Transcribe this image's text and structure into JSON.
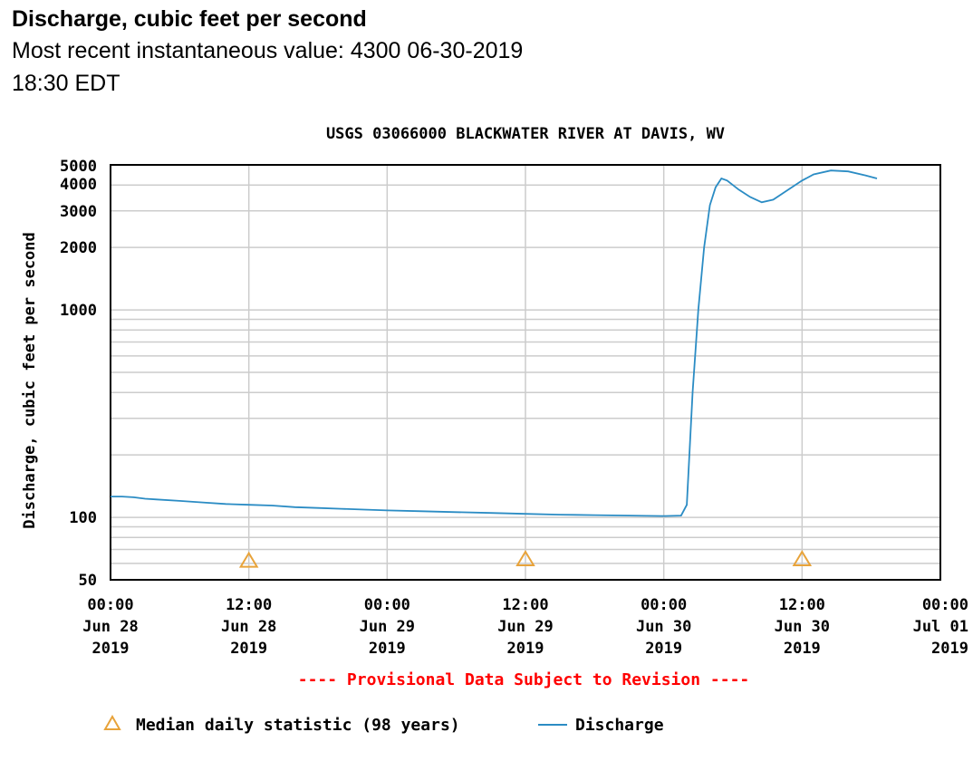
{
  "header": {
    "title": "Discharge, cubic feet per second",
    "recent_label": "Most recent instantaneous value:",
    "recent_value": "4300",
    "recent_date": "06-30-2019",
    "recent_time": "18:30 EDT"
  },
  "chart_data": {
    "type": "line",
    "title": "USGS 03066000 BLACKWATER RIVER AT DAVIS, WV",
    "ylabel": "Discharge, cubic feet per second",
    "xlabel": "",
    "y_scale": "log",
    "ylim": [
      50,
      5000
    ],
    "xlim": [
      "2019-06-28 00:00",
      "2019-07-01 00:00"
    ],
    "y_ticks": [
      {
        "value": 50,
        "label": "50"
      },
      {
        "value": 100,
        "label": "100"
      },
      {
        "value": 1000,
        "label": "1000"
      },
      {
        "value": 2000,
        "label": "2000"
      },
      {
        "value": 3000,
        "label": "3000"
      },
      {
        "value": 4000,
        "label": "4000"
      },
      {
        "value": 5000,
        "label": "5000"
      }
    ],
    "x_ticks": [
      {
        "x": "2019-06-28 00:00",
        "lines": [
          "00:00",
          "Jun 28",
          "2019"
        ]
      },
      {
        "x": "2019-06-28 12:00",
        "lines": [
          "12:00",
          "Jun 28",
          "2019"
        ]
      },
      {
        "x": "2019-06-29 00:00",
        "lines": [
          "00:00",
          "Jun 29",
          "2019"
        ]
      },
      {
        "x": "2019-06-29 12:00",
        "lines": [
          "12:00",
          "Jun 29",
          "2019"
        ]
      },
      {
        "x": "2019-06-30 00:00",
        "lines": [
          "00:00",
          "Jun 30",
          "2019"
        ]
      },
      {
        "x": "2019-06-30 12:00",
        "lines": [
          "12:00",
          "Jun 30",
          "2019"
        ]
      },
      {
        "x": "2019-07-01 00:00",
        "lines": [
          "00:00",
          "Jul 01",
          "2019"
        ]
      }
    ],
    "grid": true,
    "series": [
      {
        "name": "Discharge",
        "color": "#2b8cc4",
        "points": [
          [
            "2019-06-28 00:00",
            126
          ],
          [
            "2019-06-28 01:00",
            126
          ],
          [
            "2019-06-28 02:00",
            125
          ],
          [
            "2019-06-28 03:00",
            123
          ],
          [
            "2019-06-28 04:00",
            122
          ],
          [
            "2019-06-28 06:00",
            120
          ],
          [
            "2019-06-28 08:00",
            118
          ],
          [
            "2019-06-28 10:00",
            116
          ],
          [
            "2019-06-28 12:00",
            115
          ],
          [
            "2019-06-28 14:00",
            114
          ],
          [
            "2019-06-28 16:00",
            112
          ],
          [
            "2019-06-28 18:00",
            111
          ],
          [
            "2019-06-28 20:00",
            110
          ],
          [
            "2019-06-28 22:00",
            109
          ],
          [
            "2019-06-29 00:00",
            108
          ],
          [
            "2019-06-29 03:00",
            107
          ],
          [
            "2019-06-29 06:00",
            106
          ],
          [
            "2019-06-29 09:00",
            105
          ],
          [
            "2019-06-29 12:00",
            104
          ],
          [
            "2019-06-29 15:00",
            103
          ],
          [
            "2019-06-29 18:00",
            102.5
          ],
          [
            "2019-06-29 21:00",
            102
          ],
          [
            "2019-06-30 00:00",
            101.5
          ],
          [
            "2019-06-30 01:30",
            102
          ],
          [
            "2019-06-30 02:00",
            115
          ],
          [
            "2019-06-30 02:30",
            400
          ],
          [
            "2019-06-30 03:00",
            1000
          ],
          [
            "2019-06-30 03:30",
            2000
          ],
          [
            "2019-06-30 04:00",
            3200
          ],
          [
            "2019-06-30 04:30",
            3900
          ],
          [
            "2019-06-30 05:00",
            4300
          ],
          [
            "2019-06-30 05:30",
            4200
          ],
          [
            "2019-06-30 06:30",
            3800
          ],
          [
            "2019-06-30 07:30",
            3500
          ],
          [
            "2019-06-30 08:30",
            3300
          ],
          [
            "2019-06-30 09:30",
            3400
          ],
          [
            "2019-06-30 10:30",
            3700
          ],
          [
            "2019-06-30 12:00",
            4200
          ],
          [
            "2019-06-30 13:00",
            4500
          ],
          [
            "2019-06-30 14:30",
            4700
          ],
          [
            "2019-06-30 16:00",
            4650
          ],
          [
            "2019-06-30 17:30",
            4450
          ],
          [
            "2019-06-30 18:30",
            4300
          ]
        ]
      },
      {
        "name": "Median daily statistic (98 years)",
        "color": "#e8a33a",
        "marker": "triangle",
        "points": [
          [
            "2019-06-28 12:00",
            62
          ],
          [
            "2019-06-29 12:00",
            63
          ],
          [
            "2019-06-30 12:00",
            63
          ]
        ]
      }
    ],
    "legend": {
      "placement": "bottom",
      "items": [
        {
          "symbol": "triangle",
          "color": "#e8a33a",
          "label": "Median daily statistic (98 years)"
        },
        {
          "symbol": "line",
          "color": "#2b8cc4",
          "label": "Discharge"
        }
      ]
    },
    "annotation": {
      "text": "---- Provisional Data Subject to Revision ----",
      "color": "#ff0000"
    }
  }
}
